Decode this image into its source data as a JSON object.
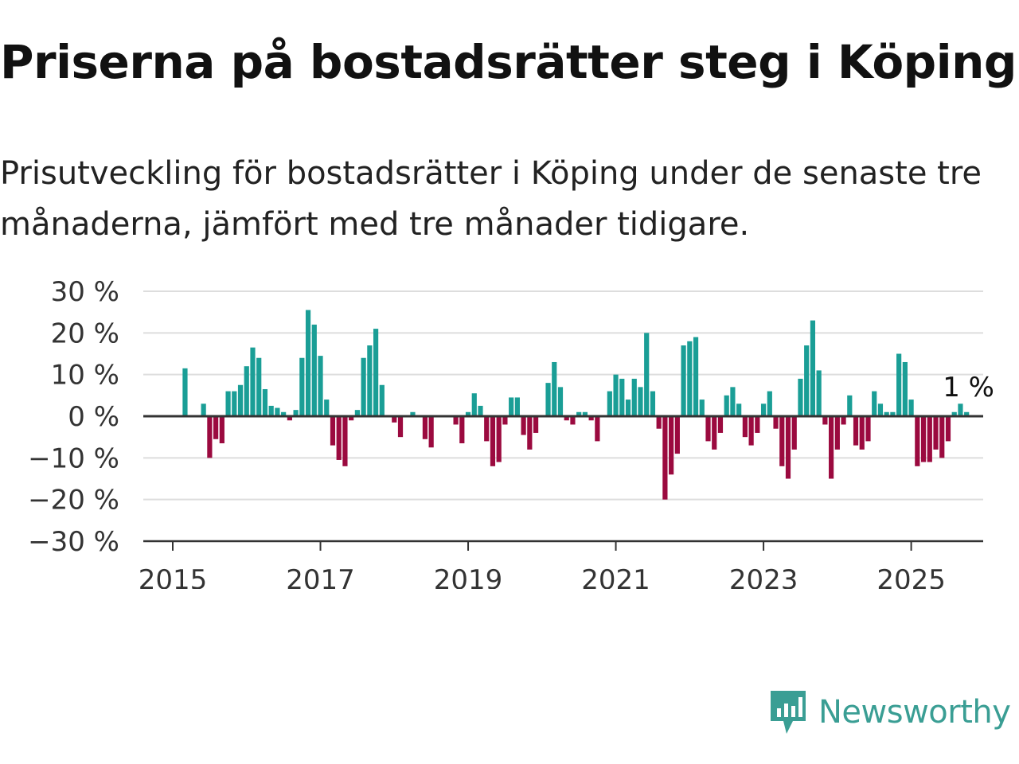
{
  "title": "Priserna på bostadsrätter steg i Köping",
  "subtitle": "Prisutveckling för bostadsrätter i Köping under de senaste tre månaderna, jämfört med tre månader tidigare.",
  "brand": {
    "name": "Newsworthy",
    "icon": "newsworthy-logo-icon"
  },
  "colors": {
    "positive": "#1a9e96",
    "negative": "#9b0a3f",
    "grid": "#dddddd",
    "axis": "#333333"
  },
  "chart_data": {
    "type": "bar",
    "x_start": "2015-01",
    "y_tick_labels": [
      "30 %",
      "20 %",
      "10 %",
      "0 %",
      "−10 %",
      "−20 %",
      "−30 %"
    ],
    "y_ticks": [
      30,
      20,
      10,
      0,
      -10,
      -20,
      -30
    ],
    "ylim": [
      -30,
      30
    ],
    "x_tick_labels": [
      "2015",
      "2017",
      "2019",
      "2021",
      "2023",
      "2025"
    ],
    "annotation": "1 %",
    "grid": true,
    "values": [
      0,
      0,
      11.5,
      0,
      0,
      3,
      -10,
      -5.5,
      -6.5,
      6,
      6,
      7.5,
      12,
      16.5,
      14,
      6.5,
      2.5,
      2,
      1,
      -1,
      1.5,
      14,
      25.5,
      22,
      14.5,
      4,
      -7,
      -10.5,
      -12,
      -1,
      1.5,
      14,
      17,
      21,
      7.5,
      0,
      -1.5,
      -5,
      0,
      1,
      0,
      -5.5,
      -7.5,
      0,
      0,
      0,
      -2,
      -6.5,
      1,
      5.5,
      2.5,
      -6,
      -12,
      -11,
      -2,
      4.5,
      4.5,
      -4.5,
      -8,
      -4,
      0,
      8,
      13,
      7,
      -1,
      -2,
      1,
      1,
      -1,
      -6,
      0,
      6,
      10,
      9,
      4,
      9,
      7,
      20,
      6,
      -3,
      -20,
      -14,
      -9,
      17,
      18,
      19,
      4,
      -6,
      -8,
      -4,
      5,
      7,
      3,
      -5,
      -7,
      -4,
      3,
      6,
      -3,
      -12,
      -15,
      -8,
      9,
      17,
      23,
      11,
      -2,
      -15,
      -8,
      -2,
      5,
      -7,
      -8,
      -6,
      6,
      3,
      1,
      1,
      15,
      13,
      4,
      -12,
      -11,
      -11,
      -8,
      -10,
      -6,
      1,
      3,
      1
    ]
  }
}
